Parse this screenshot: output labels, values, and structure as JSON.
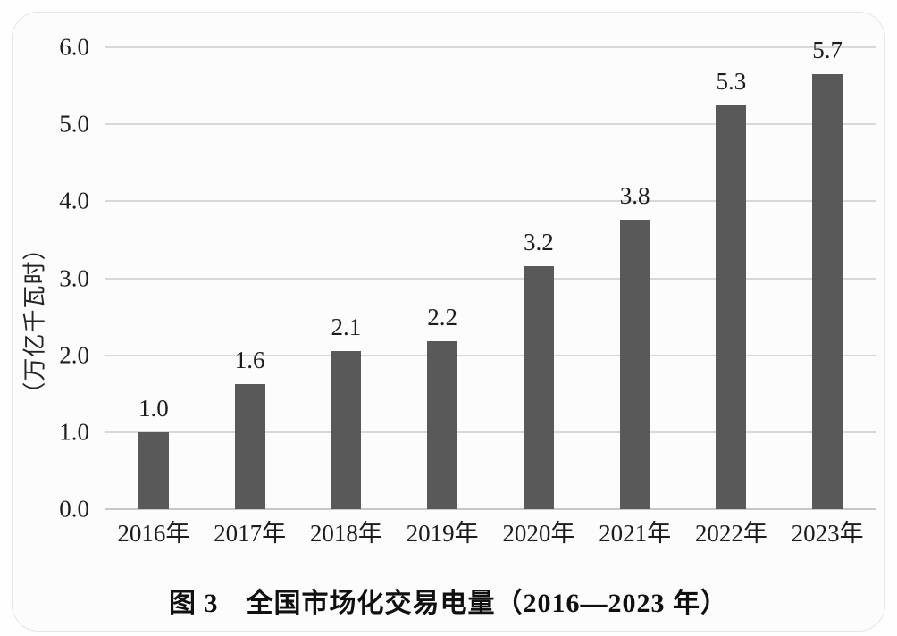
{
  "figure": {
    "caption": "图 3　全国市场化交易电量（2016—2023 年）"
  },
  "chart_data": {
    "type": "bar",
    "title": "图 3　全国市场化交易电量（2016—2023 年）",
    "xlabel": "",
    "ylabel": "（万亿千瓦时）",
    "categories": [
      "2016年",
      "2017年",
      "2018年",
      "2019年",
      "2020年",
      "2021年",
      "2022年",
      "2023年"
    ],
    "values": [
      1.0,
      1.6,
      2.1,
      2.2,
      3.2,
      3.8,
      5.3,
      5.7
    ],
    "data_labels": [
      "1.0",
      "1.6",
      "2.1",
      "2.2",
      "3.2",
      "3.8",
      "5.3",
      "5.7"
    ],
    "bar_heights_drawn": [
      1.0,
      1.62,
      2.06,
      2.18,
      3.16,
      3.76,
      5.25,
      5.65
    ],
    "yticks": [
      {
        "label": "0.0",
        "value": 0
      },
      {
        "label": "1.0",
        "value": 1
      },
      {
        "label": "2.0",
        "value": 2
      },
      {
        "label": "3.0",
        "value": 3
      },
      {
        "label": "4.0",
        "value": 4
      },
      {
        "label": "5.0",
        "value": 5
      },
      {
        "label": "6.0",
        "value": 6
      }
    ],
    "ylim": [
      0,
      6
    ],
    "grid": "horizontal",
    "legend": "none",
    "colors": {
      "bar": "#595959",
      "gridline": "#d8d8d8",
      "axis_line": "#c8c8c8",
      "text": "#1c1c1c",
      "card_background": "#fcfcfc",
      "card_border": "#e5e5e5",
      "page_background": "#fefefe"
    }
  }
}
